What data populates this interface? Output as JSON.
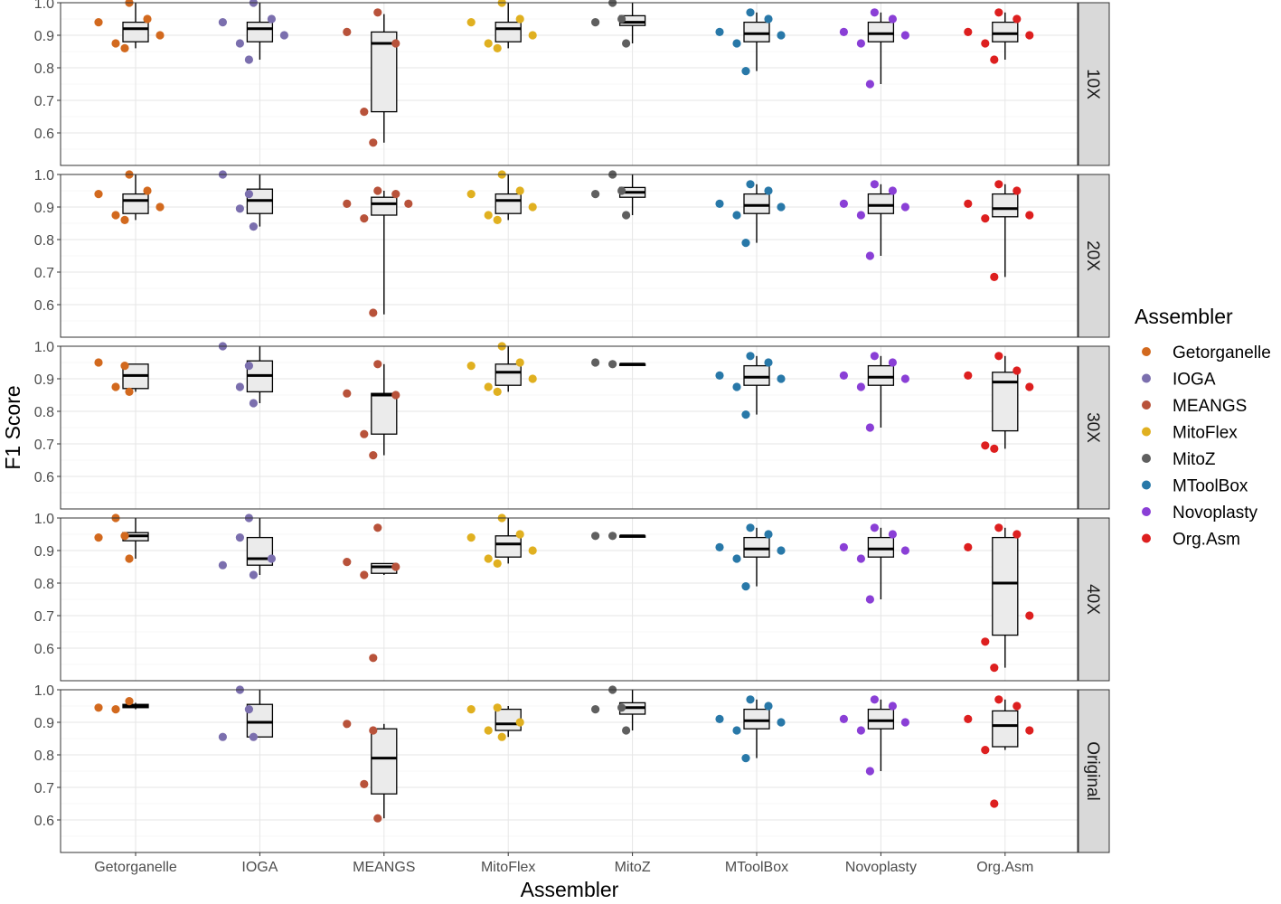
{
  "chart_data": {
    "type": "box",
    "xlabel": "Assembler",
    "ylabel": "F1 Score",
    "categories": [
      "Getorganelle",
      "IOGA",
      "MEANGS",
      "MitoFlex",
      "MitoZ",
      "MToolBox",
      "Novoplasty",
      "Org.Asm"
    ],
    "ylim": [
      0.5,
      1.0
    ],
    "yticks": [
      0.6,
      0.7,
      0.8,
      0.9,
      1.0
    ],
    "ytick_labels": [
      "0.6",
      "0.7",
      "0.8",
      "0.9",
      "1.0"
    ],
    "grid": true,
    "facet_position": "right",
    "legend": {
      "title": "Assembler",
      "position": "right",
      "entries": [
        "Getorganelle",
        "IOGA",
        "MEANGS",
        "MitoFlex",
        "MitoZ",
        "MToolBox",
        "Novoplasty",
        "Org.Asm"
      ]
    },
    "colors": {
      "Getorganelle": "#d2691e",
      "IOGA": "#7b6fae",
      "MEANGS": "#b8523a",
      "MitoFlex": "#e0b020",
      "MitoZ": "#5f5f5f",
      "MToolBox": "#2878a8",
      "Novoplasty": "#8a3fd6",
      "Org.Asm": "#dd1f1f"
    },
    "facets": [
      {
        "label": "10X",
        "boxes": [
          {
            "category": "Getorganelle",
            "min": 0.86,
            "q1": 0.88,
            "median": 0.92,
            "q3": 0.94,
            "max": 1.0,
            "points": [
              0.94,
              0.875,
              1.0,
              0.86,
              0.95,
              0.9
            ]
          },
          {
            "category": "IOGA",
            "min": 0.825,
            "q1": 0.88,
            "median": 0.92,
            "q3": 0.94,
            "max": 1.0,
            "points": [
              0.94,
              0.875,
              1.0,
              0.825,
              0.95,
              0.9
            ]
          },
          {
            "category": "MEANGS",
            "min": 0.57,
            "q1": 0.665,
            "median": 0.875,
            "q3": 0.91,
            "max": 0.965,
            "points": [
              0.91,
              0.665,
              0.97,
              0.57,
              0.875
            ]
          },
          {
            "category": "MitoFlex",
            "min": 0.86,
            "q1": 0.88,
            "median": 0.92,
            "q3": 0.94,
            "max": 1.0,
            "points": [
              0.94,
              0.875,
              1.0,
              0.86,
              0.95,
              0.9
            ]
          },
          {
            "category": "MitoZ",
            "min": 0.875,
            "q1": 0.93,
            "median": 0.94,
            "q3": 0.96,
            "max": 1.0,
            "points": [
              0.94,
              1.0,
              0.875,
              0.95
            ]
          },
          {
            "category": "MToolBox",
            "min": 0.79,
            "q1": 0.88,
            "median": 0.905,
            "q3": 0.94,
            "max": 0.97,
            "points": [
              0.91,
              0.875,
              0.97,
              0.79,
              0.95,
              0.9
            ]
          },
          {
            "category": "Novoplasty",
            "min": 0.75,
            "q1": 0.88,
            "median": 0.905,
            "q3": 0.94,
            "max": 0.97,
            "points": [
              0.91,
              0.875,
              0.97,
              0.75,
              0.95,
              0.9
            ]
          },
          {
            "category": "Org.Asm",
            "min": 0.825,
            "q1": 0.88,
            "median": 0.905,
            "q3": 0.94,
            "max": 0.97,
            "points": [
              0.91,
              0.875,
              0.97,
              0.825,
              0.95,
              0.9
            ]
          }
        ]
      },
      {
        "label": "20X",
        "boxes": [
          {
            "category": "Getorganelle",
            "min": 0.86,
            "q1": 0.88,
            "median": 0.92,
            "q3": 0.94,
            "max": 1.0,
            "points": [
              0.94,
              0.875,
              1.0,
              0.86,
              0.95,
              0.9
            ]
          },
          {
            "category": "IOGA",
            "min": 0.84,
            "q1": 0.88,
            "median": 0.92,
            "q3": 0.955,
            "max": 1.0,
            "points": [
              1.0,
              0.895,
              0.84,
              0.94
            ]
          },
          {
            "category": "MEANGS",
            "min": 0.57,
            "q1": 0.875,
            "median": 0.91,
            "q3": 0.93,
            "max": 0.95,
            "points": [
              0.91,
              0.865,
              0.95,
              0.575,
              0.94,
              0.91
            ]
          },
          {
            "category": "MitoFlex",
            "min": 0.86,
            "q1": 0.88,
            "median": 0.92,
            "q3": 0.94,
            "max": 1.0,
            "points": [
              0.94,
              0.875,
              1.0,
              0.86,
              0.95,
              0.9
            ]
          },
          {
            "category": "MitoZ",
            "min": 0.875,
            "q1": 0.93,
            "median": 0.945,
            "q3": 0.96,
            "max": 1.0,
            "points": [
              0.94,
              1.0,
              0.875,
              0.95
            ]
          },
          {
            "category": "MToolBox",
            "min": 0.79,
            "q1": 0.88,
            "median": 0.905,
            "q3": 0.94,
            "max": 0.97,
            "points": [
              0.91,
              0.875,
              0.97,
              0.79,
              0.95,
              0.9
            ]
          },
          {
            "category": "Novoplasty",
            "min": 0.75,
            "q1": 0.88,
            "median": 0.905,
            "q3": 0.94,
            "max": 0.97,
            "points": [
              0.91,
              0.875,
              0.97,
              0.75,
              0.95,
              0.9
            ]
          },
          {
            "category": "Org.Asm",
            "min": 0.685,
            "q1": 0.87,
            "median": 0.895,
            "q3": 0.94,
            "max": 0.97,
            "points": [
              0.91,
              0.865,
              0.97,
              0.685,
              0.95,
              0.875
            ]
          }
        ]
      },
      {
        "label": "30X",
        "boxes": [
          {
            "category": "Getorganelle",
            "min": 0.86,
            "q1": 0.87,
            "median": 0.91,
            "q3": 0.945,
            "max": 0.945,
            "points": [
              0.95,
              0.875,
              0.86,
              0.94
            ]
          },
          {
            "category": "IOGA",
            "min": 0.825,
            "q1": 0.86,
            "median": 0.91,
            "q3": 0.955,
            "max": 1.0,
            "points": [
              1.0,
              0.875,
              0.825,
              0.94
            ]
          },
          {
            "category": "MEANGS",
            "min": 0.665,
            "q1": 0.73,
            "median": 0.85,
            "q3": 0.855,
            "max": 0.945,
            "points": [
              0.855,
              0.73,
              0.945,
              0.665,
              0.85
            ]
          },
          {
            "category": "MitoFlex",
            "min": 0.86,
            "q1": 0.88,
            "median": 0.92,
            "q3": 0.945,
            "max": 1.0,
            "points": [
              0.94,
              0.875,
              1.0,
              0.86,
              0.95,
              0.9
            ]
          },
          {
            "category": "MitoZ",
            "min": 0.945,
            "q1": 0.945,
            "median": 0.945,
            "q3": 0.945,
            "max": 0.945,
            "points": [
              0.95,
              0.945
            ]
          },
          {
            "category": "MToolBox",
            "min": 0.79,
            "q1": 0.88,
            "median": 0.905,
            "q3": 0.94,
            "max": 0.97,
            "points": [
              0.91,
              0.875,
              0.97,
              0.79,
              0.95,
              0.9
            ]
          },
          {
            "category": "Novoplasty",
            "min": 0.75,
            "q1": 0.88,
            "median": 0.905,
            "q3": 0.94,
            "max": 0.97,
            "points": [
              0.91,
              0.875,
              0.97,
              0.75,
              0.95,
              0.9
            ]
          },
          {
            "category": "Org.Asm",
            "min": 0.685,
            "q1": 0.74,
            "median": 0.89,
            "q3": 0.92,
            "max": 0.97,
            "points": [
              0.91,
              0.695,
              0.97,
              0.685,
              0.925,
              0.875
            ]
          }
        ]
      },
      {
        "label": "40X",
        "boxes": [
          {
            "category": "Getorganelle",
            "min": 0.875,
            "q1": 0.93,
            "median": 0.945,
            "q3": 0.955,
            "max": 1.0,
            "points": [
              0.94,
              1.0,
              0.875,
              0.945
            ]
          },
          {
            "category": "IOGA",
            "min": 0.825,
            "q1": 0.855,
            "median": 0.875,
            "q3": 0.94,
            "max": 1.0,
            "points": [
              0.855,
              0.94,
              0.825,
              1.0,
              0.875
            ]
          },
          {
            "category": "MEANGS",
            "min": 0.825,
            "q1": 0.83,
            "median": 0.85,
            "q3": 0.86,
            "max": 0.86,
            "points": [
              0.865,
              0.825,
              0.97,
              0.57,
              0.85
            ]
          },
          {
            "category": "MitoFlex",
            "min": 0.86,
            "q1": 0.88,
            "median": 0.92,
            "q3": 0.945,
            "max": 1.0,
            "points": [
              0.94,
              0.875,
              1.0,
              0.86,
              0.95,
              0.9
            ]
          },
          {
            "category": "MitoZ",
            "min": 0.945,
            "q1": 0.945,
            "median": 0.945,
            "q3": 0.945,
            "max": 0.945,
            "points": [
              0.945,
              0.945
            ]
          },
          {
            "category": "MToolBox",
            "min": 0.79,
            "q1": 0.88,
            "median": 0.905,
            "q3": 0.94,
            "max": 0.97,
            "points": [
              0.91,
              0.875,
              0.97,
              0.79,
              0.95,
              0.9
            ]
          },
          {
            "category": "Novoplasty",
            "min": 0.75,
            "q1": 0.88,
            "median": 0.905,
            "q3": 0.94,
            "max": 0.97,
            "points": [
              0.91,
              0.875,
              0.97,
              0.75,
              0.95,
              0.9
            ]
          },
          {
            "category": "Org.Asm",
            "min": 0.54,
            "q1": 0.64,
            "median": 0.8,
            "q3": 0.94,
            "max": 0.97,
            "points": [
              0.91,
              0.62,
              0.97,
              0.54,
              0.95,
              0.7
            ]
          }
        ]
      },
      {
        "label": "Original",
        "boxes": [
          {
            "category": "Getorganelle",
            "min": 0.94,
            "q1": 0.945,
            "median": 0.95,
            "q3": 0.955,
            "max": 0.96,
            "points": [
              0.945,
              0.94,
              0.965
            ]
          },
          {
            "category": "IOGA",
            "min": 0.855,
            "q1": 0.855,
            "median": 0.9,
            "q3": 0.955,
            "max": 1.0,
            "points": [
              0.855,
              1.0,
              0.855,
              0.94
            ]
          },
          {
            "category": "MEANGS",
            "min": 0.605,
            "q1": 0.68,
            "median": 0.79,
            "q3": 0.88,
            "max": 0.895,
            "points": [
              0.895,
              0.71,
              0.605,
              0.875
            ]
          },
          {
            "category": "MitoFlex",
            "min": 0.855,
            "q1": 0.875,
            "median": 0.895,
            "q3": 0.94,
            "max": 0.95,
            "points": [
              0.94,
              0.875,
              0.855,
              0.945,
              0.9
            ]
          },
          {
            "category": "MitoZ",
            "min": 0.875,
            "q1": 0.925,
            "median": 0.945,
            "q3": 0.96,
            "max": 1.0,
            "points": [
              0.94,
              1.0,
              0.875,
              0.945
            ]
          },
          {
            "category": "MToolBox",
            "min": 0.79,
            "q1": 0.88,
            "median": 0.905,
            "q3": 0.94,
            "max": 0.97,
            "points": [
              0.91,
              0.875,
              0.97,
              0.79,
              0.95,
              0.9
            ]
          },
          {
            "category": "Novoplasty",
            "min": 0.75,
            "q1": 0.88,
            "median": 0.905,
            "q3": 0.94,
            "max": 0.97,
            "points": [
              0.91,
              0.875,
              0.97,
              0.75,
              0.95,
              0.9
            ]
          },
          {
            "category": "Org.Asm",
            "min": 0.815,
            "q1": 0.825,
            "median": 0.89,
            "q3": 0.935,
            "max": 0.97,
            "points": [
              0.91,
              0.815,
              0.97,
              0.65,
              0.95,
              0.875
            ]
          }
        ]
      }
    ]
  }
}
